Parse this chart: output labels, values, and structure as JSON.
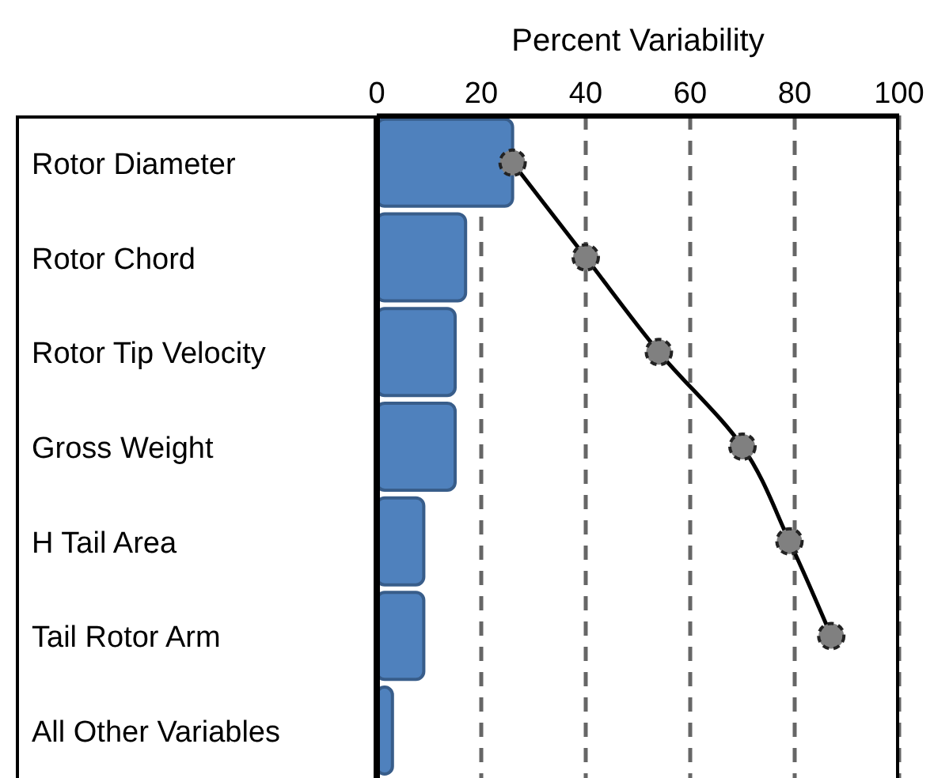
{
  "chart_data": {
    "type": "bar",
    "orientation": "horizontal",
    "xlabel": "Percent Variability",
    "categories": [
      "Rotor Diameter",
      "Rotor Chord",
      "Rotor Tip Velocity",
      "Gross Weight",
      "H Tail Area",
      "Tail Rotor Arm",
      "All Other Variables"
    ],
    "series": [
      {
        "color": "#4f81bd",
        "values": [
          26,
          17,
          15,
          15,
          9,
          9,
          3
        ]
      },
      {
        "type": "line",
        "color": "#000000",
        "marker": "circle",
        "values": [
          26,
          40,
          54,
          70,
          79,
          87,
          null
        ]
      }
    ],
    "xlim": [
      0,
      100
    ],
    "xticks": [
      0,
      20,
      40,
      60,
      80,
      100
    ],
    "grid": "x",
    "legend": false
  }
}
